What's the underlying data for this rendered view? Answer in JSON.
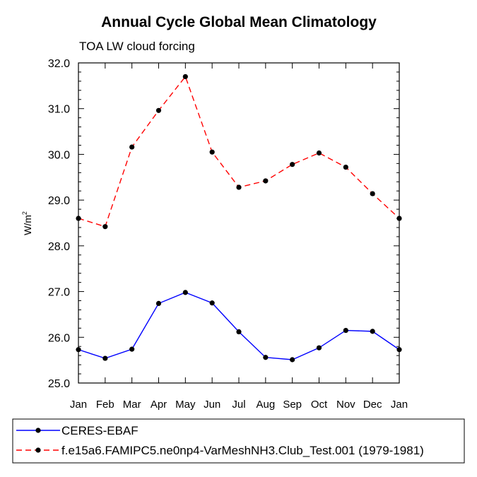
{
  "chart_data": {
    "type": "line",
    "title": "Annual Cycle Global Mean Climatology",
    "subtitle": "TOA LW cloud forcing",
    "xlabel": "",
    "ylabel": "W/m",
    "ylabel_sup": "2",
    "ylim": [
      25.0,
      32.0
    ],
    "yticks": [
      "25.0",
      "26.0",
      "27.0",
      "28.0",
      "29.0",
      "30.0",
      "31.0",
      "32.0"
    ],
    "categories": [
      "Jan",
      "Feb",
      "Mar",
      "Apr",
      "May",
      "Jun",
      "Jul",
      "Aug",
      "Sep",
      "Oct",
      "Nov",
      "Dec",
      "Jan"
    ],
    "series": [
      {
        "name": "CERES-EBAF",
        "color": "#0000ff",
        "dash": "solid",
        "values": [
          25.73,
          25.54,
          25.74,
          26.74,
          26.98,
          26.75,
          26.12,
          25.56,
          25.51,
          25.77,
          26.15,
          26.13,
          25.73
        ]
      },
      {
        "name": "f.e15a6.FAMIPC5.ne0np4-VarMeshNH3.Club_Test.001 (1979-1981)",
        "color": "#ff0000",
        "dash": "dashed",
        "values": [
          28.6,
          28.42,
          30.16,
          30.96,
          31.7,
          30.05,
          29.28,
          29.42,
          29.78,
          30.03,
          29.72,
          29.14,
          28.6
        ]
      }
    ],
    "grid": false,
    "legend_position": "bottom"
  }
}
